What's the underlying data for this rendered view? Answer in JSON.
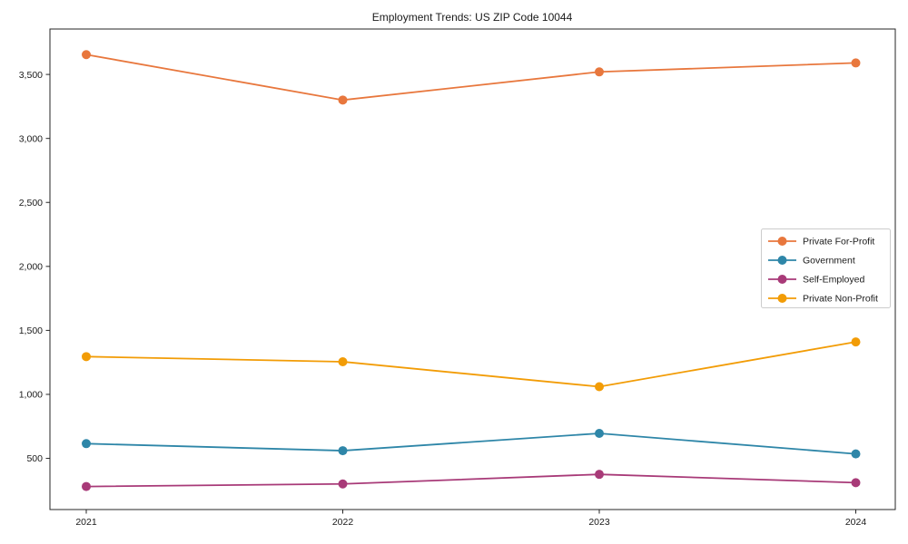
{
  "chart_data": {
    "type": "line",
    "title": "Employment Trends: US ZIP Code 10044",
    "xlabel": "",
    "ylabel": "",
    "categories": [
      "2021",
      "2022",
      "2023",
      "2024"
    ],
    "series": [
      {
        "name": "Private For-Profit",
        "color": "#E8773D",
        "values": [
          3655,
          3300,
          3520,
          3590
        ]
      },
      {
        "name": "Government",
        "color": "#2E86A8",
        "values": [
          615,
          560,
          695,
          535
        ]
      },
      {
        "name": "Self-Employed",
        "color": "#A83A78",
        "values": [
          280,
          300,
          375,
          310
        ]
      },
      {
        "name": "Private Non-Profit",
        "color": "#F29C06",
        "values": [
          1295,
          1255,
          1060,
          1410
        ]
      }
    ],
    "yticks": [
      500,
      1000,
      1500,
      2000,
      2500,
      3000,
      3500
    ],
    "ytick_labels": [
      "500",
      "1,000",
      "1,500",
      "2,000",
      "2,500",
      "3,000",
      "3,500"
    ],
    "ylim": [
      100,
      3855
    ],
    "grid": false,
    "legend_position": "center right",
    "marker": "circle"
  }
}
